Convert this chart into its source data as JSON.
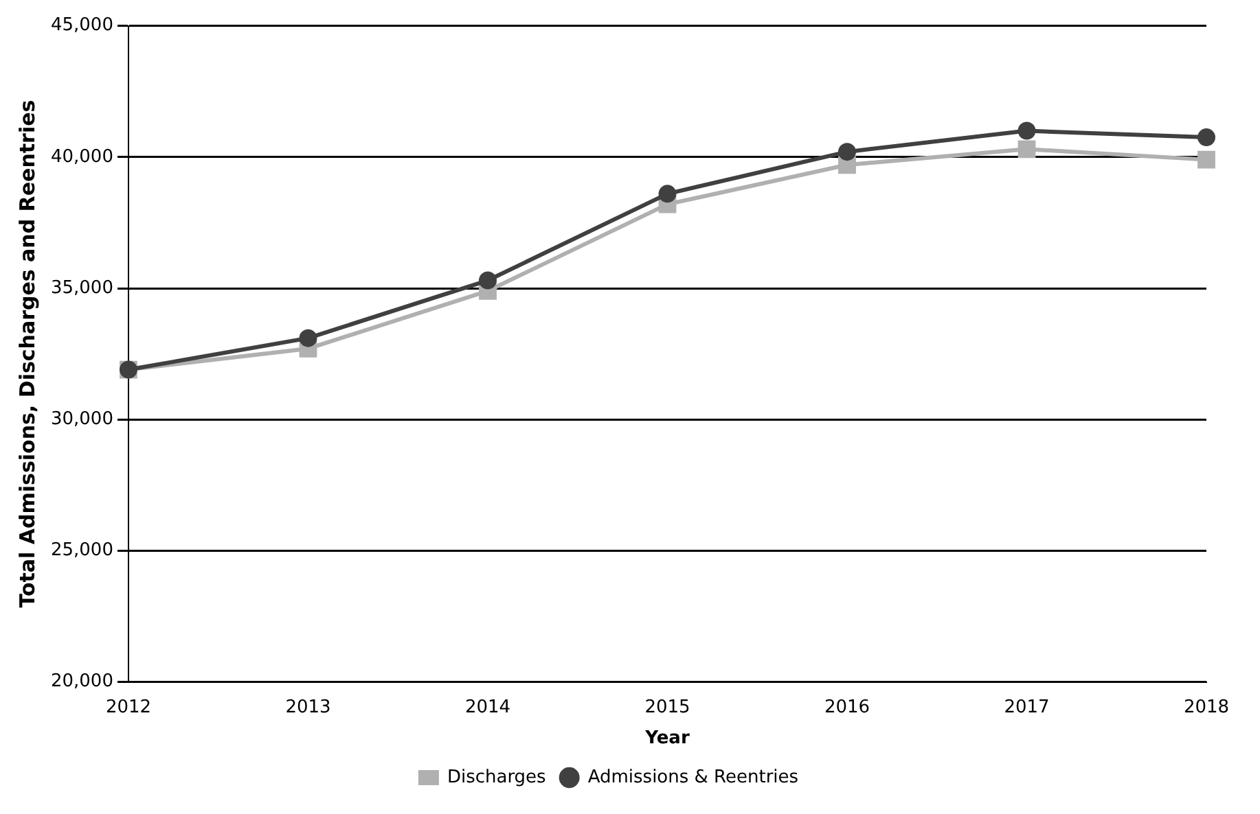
{
  "chart_data": {
    "type": "line",
    "xlabel": "Year",
    "ylabel": "Total Admissions, Discharges and Reentries",
    "categories": [
      "2012",
      "2013",
      "2014",
      "2015",
      "2016",
      "2017",
      "2018"
    ],
    "series": [
      {
        "name": "Discharges",
        "color": "#b0b0b0",
        "marker": "square",
        "values": [
          31900,
          32700,
          34900,
          38200,
          39700,
          40300,
          39900
        ]
      },
      {
        "name": "Admissions & Reentries",
        "color": "#404040",
        "marker": "circle",
        "values": [
          31900,
          33100,
          35300,
          38600,
          40200,
          41000,
          40750
        ]
      }
    ],
    "ylim": [
      20000,
      45000
    ],
    "yticks": [
      {
        "value": 20000,
        "label": "20,000"
      },
      {
        "value": 25000,
        "label": "25,000"
      },
      {
        "value": 30000,
        "label": "30,000"
      },
      {
        "value": 35000,
        "label": "35,000"
      },
      {
        "value": 40000,
        "label": "40,000"
      },
      {
        "value": 45000,
        "label": "45,000"
      }
    ],
    "grid": "y",
    "legend": "bottom",
    "line_style": "solid"
  }
}
